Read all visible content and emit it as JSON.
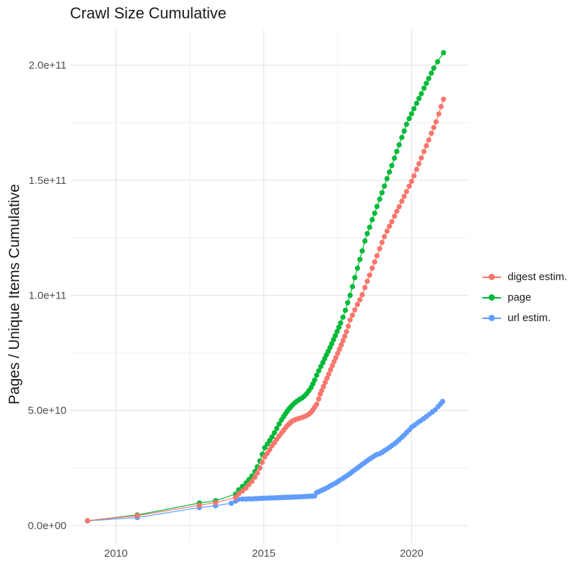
{
  "chart_data": {
    "type": "scatter",
    "title": "Crawl Size Cumulative",
    "xlabel": "",
    "ylabel": "Pages / Unique Items Cumulative",
    "grid": "major+minor",
    "legend_position": "right",
    "x_domain": [
      2008.47,
      2021.91
    ],
    "y_domain_e9": [
      -7.7,
      215.4
    ],
    "x_major_ticks": [
      2010,
      2015,
      2020
    ],
    "x_major_labels": [
      "2010",
      "2015",
      "2020"
    ],
    "x_minor_ticks": [
      2012.5,
      2017.5
    ],
    "y_major_ticks_e9": [
      0,
      50,
      100,
      150,
      200
    ],
    "y_major_labels": [
      "0.0e+00",
      "5.0e+10",
      "1.0e+11",
      "1.5e+11",
      "2.0e+11"
    ],
    "y_minor_ticks_e9": [
      25,
      75,
      125,
      175
    ],
    "values_unit": "billions (1e9) of pages / unique items, cumulative",
    "colors": {
      "grid_major": "#e4e4e4",
      "grid_minor": "#efefef",
      "tick_text": "#4d4d4d",
      "title_text": "#1a1a1a"
    },
    "series": [
      {
        "name": "digest estim.",
        "color": "#F8766D",
        "points": [
          [
            2009.04,
            2.1
          ],
          [
            2010.72,
            4.3
          ],
          [
            2012.82,
            8.8
          ],
          [
            2013.37,
            10.0
          ],
          [
            2014.05,
            12.2
          ],
          [
            2014.15,
            13.8
          ],
          [
            2014.28,
            15.0
          ],
          [
            2014.4,
            16.3
          ],
          [
            2014.5,
            17.8
          ],
          [
            2014.6,
            19.2
          ],
          [
            2014.7,
            21.0
          ],
          [
            2014.78,
            22.8
          ],
          [
            2014.87,
            25.0
          ],
          [
            2014.95,
            27.5
          ],
          [
            2015.03,
            29.8
          ],
          [
            2015.12,
            31.4
          ],
          [
            2015.2,
            33.0
          ],
          [
            2015.28,
            34.6
          ],
          [
            2015.36,
            36.0
          ],
          [
            2015.44,
            37.5
          ],
          [
            2015.52,
            38.9
          ],
          [
            2015.6,
            40.2
          ],
          [
            2015.67,
            41.4
          ],
          [
            2015.73,
            42.4
          ],
          [
            2015.79,
            43.3
          ],
          [
            2015.85,
            44.1
          ],
          [
            2015.91,
            44.8
          ],
          [
            2015.97,
            45.4
          ],
          [
            2016.05,
            45.9
          ],
          [
            2016.13,
            46.3
          ],
          [
            2016.21,
            46.6
          ],
          [
            2016.29,
            46.9
          ],
          [
            2016.37,
            47.3
          ],
          [
            2016.45,
            47.8
          ],
          [
            2016.53,
            48.4
          ],
          [
            2016.6,
            49.2
          ],
          [
            2016.66,
            50.2
          ],
          [
            2016.72,
            51.4
          ],
          [
            2016.79,
            52.7
          ],
          [
            2016.86,
            55.0
          ],
          [
            2016.91,
            57.1
          ],
          [
            2016.96,
            58.6
          ],
          [
            2017.02,
            60.4
          ],
          [
            2017.08,
            62.2
          ],
          [
            2017.14,
            64.0
          ],
          [
            2017.2,
            65.8
          ],
          [
            2017.26,
            67.7
          ],
          [
            2017.32,
            69.5
          ],
          [
            2017.38,
            71.3
          ],
          [
            2017.44,
            73.0
          ],
          [
            2017.5,
            74.8
          ],
          [
            2017.56,
            76.6
          ],
          [
            2017.62,
            78.4
          ],
          [
            2017.68,
            80.3
          ],
          [
            2017.74,
            82.2
          ],
          [
            2017.8,
            84.2
          ],
          [
            2017.86,
            86.6
          ],
          [
            2017.92,
            89.3
          ],
          [
            2018.0,
            91.4
          ],
          [
            2018.08,
            93.7
          ],
          [
            2018.17,
            96.0
          ],
          [
            2018.25,
            98.1
          ],
          [
            2018.33,
            100.3
          ],
          [
            2018.42,
            103.4
          ],
          [
            2018.5,
            106.1
          ],
          [
            2018.58,
            108.8
          ],
          [
            2018.67,
            111.8
          ],
          [
            2018.75,
            114.5
          ],
          [
            2018.83,
            117.2
          ],
          [
            2018.92,
            120.3
          ],
          [
            2019.0,
            123.0
          ],
          [
            2019.08,
            125.5
          ],
          [
            2019.17,
            127.9
          ],
          [
            2019.25,
            130.0
          ],
          [
            2019.33,
            132.0
          ],
          [
            2019.42,
            134.4
          ],
          [
            2019.5,
            136.5
          ],
          [
            2019.58,
            138.5
          ],
          [
            2019.67,
            140.9
          ],
          [
            2019.75,
            143.0
          ],
          [
            2019.83,
            145.1
          ],
          [
            2019.92,
            147.4
          ],
          [
            2020.0,
            149.5
          ],
          [
            2020.08,
            151.9
          ],
          [
            2020.17,
            154.7
          ],
          [
            2020.25,
            157.2
          ],
          [
            2020.33,
            159.7
          ],
          [
            2020.42,
            162.5
          ],
          [
            2020.5,
            165.0
          ],
          [
            2020.58,
            167.5
          ],
          [
            2020.67,
            170.4
          ],
          [
            2020.75,
            172.9
          ],
          [
            2020.83,
            175.4
          ],
          [
            2020.92,
            178.8
          ],
          [
            2021.0,
            182.0
          ],
          [
            2021.08,
            185.2
          ]
        ]
      },
      {
        "name": "page",
        "color": "#00BA38",
        "points": [
          [
            2009.04,
            2.1
          ],
          [
            2010.72,
            4.6
          ],
          [
            2012.82,
            9.8
          ],
          [
            2013.37,
            10.8
          ],
          [
            2014.05,
            13.7
          ],
          [
            2014.15,
            15.5
          ],
          [
            2014.28,
            17.0
          ],
          [
            2014.4,
            18.5
          ],
          [
            2014.5,
            20.0
          ],
          [
            2014.6,
            21.5
          ],
          [
            2014.7,
            23.5
          ],
          [
            2014.78,
            25.5
          ],
          [
            2014.87,
            28.0
          ],
          [
            2014.95,
            31.0
          ],
          [
            2015.03,
            33.8
          ],
          [
            2015.12,
            35.4
          ],
          [
            2015.2,
            36.9
          ],
          [
            2015.28,
            38.5
          ],
          [
            2015.36,
            40.3
          ],
          [
            2015.44,
            42.2
          ],
          [
            2015.52,
            44.1
          ],
          [
            2015.6,
            45.9
          ],
          [
            2015.67,
            47.3
          ],
          [
            2015.73,
            48.5
          ],
          [
            2015.79,
            49.6
          ],
          [
            2015.85,
            50.6
          ],
          [
            2015.91,
            51.5
          ],
          [
            2015.97,
            52.3
          ],
          [
            2016.05,
            53.3
          ],
          [
            2016.13,
            54.1
          ],
          [
            2016.21,
            54.8
          ],
          [
            2016.29,
            55.4
          ],
          [
            2016.37,
            56.2
          ],
          [
            2016.45,
            57.3
          ],
          [
            2016.53,
            58.6
          ],
          [
            2016.6,
            60.0
          ],
          [
            2016.66,
            61.5
          ],
          [
            2016.72,
            63.2
          ],
          [
            2016.79,
            65.3
          ],
          [
            2016.86,
            67.2
          ],
          [
            2016.93,
            69.1
          ],
          [
            2017.0,
            70.8
          ],
          [
            2017.06,
            72.5
          ],
          [
            2017.12,
            74.1
          ],
          [
            2017.18,
            75.7
          ],
          [
            2017.24,
            77.3
          ],
          [
            2017.3,
            79.0
          ],
          [
            2017.36,
            80.7
          ],
          [
            2017.42,
            82.5
          ],
          [
            2017.48,
            84.3
          ],
          [
            2017.54,
            86.1
          ],
          [
            2017.6,
            88.0
          ],
          [
            2017.68,
            90.5
          ],
          [
            2017.76,
            93.5
          ],
          [
            2017.84,
            96.8
          ],
          [
            2017.92,
            100.0
          ],
          [
            2018.0,
            103.8
          ],
          [
            2018.08,
            107.7
          ],
          [
            2018.17,
            111.8
          ],
          [
            2018.25,
            115.6
          ],
          [
            2018.33,
            119.3
          ],
          [
            2018.42,
            123.6
          ],
          [
            2018.5,
            126.8
          ],
          [
            2018.58,
            129.6
          ],
          [
            2018.67,
            132.9
          ],
          [
            2018.75,
            135.7
          ],
          [
            2018.83,
            138.6
          ],
          [
            2018.92,
            141.8
          ],
          [
            2019.0,
            144.6
          ],
          [
            2019.08,
            147.5
          ],
          [
            2019.17,
            150.7
          ],
          [
            2019.25,
            153.6
          ],
          [
            2019.33,
            156.4
          ],
          [
            2019.42,
            159.6
          ],
          [
            2019.5,
            162.5
          ],
          [
            2019.58,
            165.4
          ],
          [
            2019.67,
            168.6
          ],
          [
            2019.75,
            171.4
          ],
          [
            2019.83,
            174.3
          ],
          [
            2019.92,
            176.8
          ],
          [
            2020.0,
            178.9
          ],
          [
            2020.08,
            181.1
          ],
          [
            2020.17,
            183.4
          ],
          [
            2020.25,
            185.5
          ],
          [
            2020.33,
            187.6
          ],
          [
            2020.42,
            190.0
          ],
          [
            2020.5,
            192.1
          ],
          [
            2020.58,
            194.2
          ],
          [
            2020.67,
            196.6
          ],
          [
            2020.75,
            198.7
          ],
          [
            2020.88,
            201.5
          ],
          [
            2021.08,
            205.4
          ]
        ]
      },
      {
        "name": "url estim.",
        "color": "#619CFF",
        "points": [
          [
            2009.04,
            2.0
          ],
          [
            2010.72,
            3.5
          ],
          [
            2012.82,
            7.8
          ],
          [
            2013.37,
            8.6
          ],
          [
            2013.9,
            9.7
          ],
          [
            2014.05,
            10.6
          ],
          [
            2014.15,
            11.4
          ],
          [
            2014.28,
            11.5
          ],
          [
            2014.4,
            11.5
          ],
          [
            2014.5,
            11.6
          ],
          [
            2014.6,
            11.6
          ],
          [
            2014.7,
            11.7
          ],
          [
            2014.78,
            11.7
          ],
          [
            2014.87,
            11.8
          ],
          [
            2014.95,
            11.8
          ],
          [
            2015.03,
            11.9
          ],
          [
            2015.12,
            11.9
          ],
          [
            2015.2,
            12.0
          ],
          [
            2015.28,
            12.0
          ],
          [
            2015.36,
            12.0
          ],
          [
            2015.44,
            12.1
          ],
          [
            2015.52,
            12.1
          ],
          [
            2015.6,
            12.2
          ],
          [
            2015.67,
            12.2
          ],
          [
            2015.73,
            12.2
          ],
          [
            2015.79,
            12.3
          ],
          [
            2015.85,
            12.3
          ],
          [
            2015.91,
            12.3
          ],
          [
            2015.97,
            12.4
          ],
          [
            2016.05,
            12.4
          ],
          [
            2016.13,
            12.4
          ],
          [
            2016.21,
            12.5
          ],
          [
            2016.29,
            12.5
          ],
          [
            2016.37,
            12.6
          ],
          [
            2016.45,
            12.6
          ],
          [
            2016.53,
            12.7
          ],
          [
            2016.6,
            12.7
          ],
          [
            2016.66,
            12.8
          ],
          [
            2016.72,
            12.8
          ],
          [
            2016.79,
            14.3
          ],
          [
            2016.86,
            14.7
          ],
          [
            2016.93,
            15.1
          ],
          [
            2017.0,
            15.5
          ],
          [
            2017.08,
            16.0
          ],
          [
            2017.17,
            16.6
          ],
          [
            2017.25,
            17.2
          ],
          [
            2017.33,
            17.8
          ],
          [
            2017.42,
            18.4
          ],
          [
            2017.5,
            19.0
          ],
          [
            2017.58,
            19.7
          ],
          [
            2017.67,
            20.4
          ],
          [
            2017.75,
            21.1
          ],
          [
            2017.83,
            21.8
          ],
          [
            2017.92,
            22.6
          ],
          [
            2018.0,
            23.4
          ],
          [
            2018.08,
            24.2
          ],
          [
            2018.17,
            25.0
          ],
          [
            2018.25,
            25.8
          ],
          [
            2018.33,
            26.6
          ],
          [
            2018.42,
            27.4
          ],
          [
            2018.5,
            28.2
          ],
          [
            2018.58,
            28.9
          ],
          [
            2018.67,
            29.6
          ],
          [
            2018.75,
            30.3
          ],
          [
            2018.83,
            30.9
          ],
          [
            2018.92,
            31.2
          ],
          [
            2019.0,
            31.8
          ],
          [
            2019.08,
            32.5
          ],
          [
            2019.17,
            33.2
          ],
          [
            2019.25,
            33.9
          ],
          [
            2019.33,
            34.7
          ],
          [
            2019.42,
            35.5
          ],
          [
            2019.5,
            36.3
          ],
          [
            2019.58,
            37.3
          ],
          [
            2019.67,
            38.3
          ],
          [
            2019.75,
            39.3
          ],
          [
            2019.83,
            40.4
          ],
          [
            2019.92,
            41.5
          ],
          [
            2020.0,
            42.7
          ],
          [
            2020.1,
            43.6
          ],
          [
            2020.2,
            44.6
          ],
          [
            2020.3,
            45.5
          ],
          [
            2020.4,
            46.4
          ],
          [
            2020.5,
            47.3
          ],
          [
            2020.6,
            48.3
          ],
          [
            2020.7,
            49.3
          ],
          [
            2020.8,
            50.3
          ],
          [
            2020.9,
            51.7
          ],
          [
            2020.98,
            52.8
          ],
          [
            2021.05,
            53.9
          ]
        ]
      }
    ]
  },
  "legend": {
    "items": [
      {
        "label": "digest estim.",
        "color": "#F8766D"
      },
      {
        "label": "page",
        "color": "#00BA38"
      },
      {
        "label": "url estim.",
        "color": "#619CFF"
      }
    ]
  }
}
